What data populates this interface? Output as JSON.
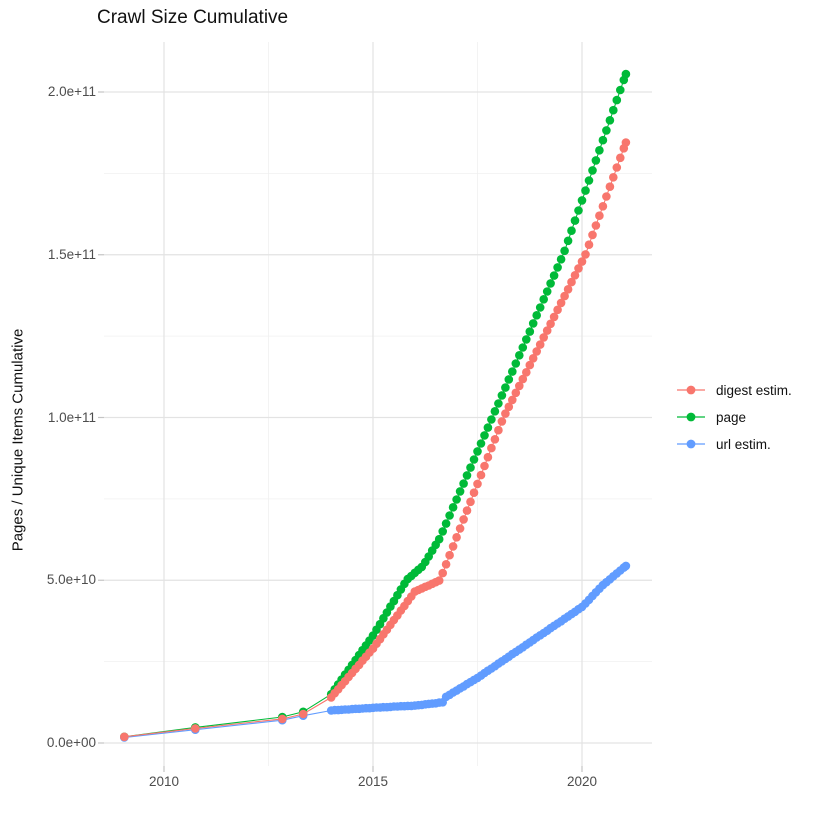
{
  "title": "Crawl Size Cumulative",
  "axes": {
    "y_title": "Pages / Unique Items Cumulative",
    "x_title": "",
    "y_ticks": {
      "values_e9": [
        0,
        50,
        100,
        150,
        200
      ],
      "labels": [
        "0.0e+00",
        "5.0e+10",
        "1.0e+11",
        "1.5e+11",
        "2.0e+11"
      ]
    },
    "y_minor_e9": [
      25,
      75,
      125,
      175
    ],
    "x_ticks": {
      "values": [
        2010,
        2015,
        2020
      ],
      "labels": [
        "2010",
        "2015",
        "2020"
      ]
    },
    "x_minor": [
      2012.5,
      2017.5
    ]
  },
  "legend": {
    "position": "right",
    "items": [
      "digest estim.",
      "page",
      "url estim."
    ]
  },
  "colors": {
    "digest": "#F8766D",
    "page": "#00BA38",
    "url": "#619CFF",
    "grid_major": "#E3E3E3",
    "grid_minor": "#F0F0F0",
    "tick": "#C4C4C4",
    "tick_text": "#4D4D4D",
    "background": "#FFFFFF"
  },
  "chart_data": {
    "type": "scatter",
    "title": "Crawl Size Cumulative",
    "xlabel": "",
    "ylabel": "Pages / Unique Items Cumulative",
    "value_unit": "1e9 (billions of pages / unique items)",
    "xlim": [
      2008.56,
      2021.72
    ],
    "ylim": [
      0,
      215000000000.0
    ],
    "grid": true,
    "legend_position": "right",
    "x_years": [
      2009.05,
      2010.75,
      2012.83,
      2013.33,
      2014.0,
      2014.083,
      2014.167,
      2014.25,
      2014.333,
      2014.417,
      2014.5,
      2014.583,
      2014.667,
      2014.75,
      2014.833,
      2014.917,
      2015.0,
      2015.083,
      2015.167,
      2015.25,
      2015.333,
      2015.417,
      2015.5,
      2015.583,
      2015.667,
      2015.75,
      2015.833,
      2015.917,
      2016.0,
      2016.083,
      2016.167,
      2016.25,
      2016.333,
      2016.417,
      2016.5,
      2016.583,
      2016.667,
      2016.75,
      2016.833,
      2016.917,
      2017.0,
      2017.083,
      2017.167,
      2017.25,
      2017.333,
      2017.417,
      2017.5,
      2017.583,
      2017.667,
      2017.75,
      2017.833,
      2017.917,
      2018.0,
      2018.083,
      2018.167,
      2018.25,
      2018.333,
      2018.417,
      2018.5,
      2018.583,
      2018.667,
      2018.75,
      2018.833,
      2018.917,
      2019.0,
      2019.083,
      2019.167,
      2019.25,
      2019.333,
      2019.417,
      2019.5,
      2019.583,
      2019.667,
      2019.75,
      2019.833,
      2019.917,
      2020.0,
      2020.083,
      2020.167,
      2020.25,
      2020.333,
      2020.417,
      2020.5,
      2020.583,
      2020.667,
      2020.75,
      2020.833,
      2020.917,
      2021.0,
      2021.05
    ],
    "series": [
      {
        "name": "digest estim.",
        "color": "#F8766D",
        "values_e9": [
          1.9,
          4.5,
          7.4,
          8.9,
          14.0,
          15.3,
          16.5,
          17.8,
          19.0,
          20.3,
          21.5,
          22.8,
          24.0,
          25.3,
          26.5,
          27.8,
          29.0,
          30.5,
          31.9,
          33.4,
          34.8,
          36.3,
          37.8,
          39.2,
          40.7,
          42.1,
          43.6,
          45.0,
          46.5,
          47.0,
          47.5,
          48.0,
          48.4,
          48.9,
          49.4,
          49.9,
          52.2,
          54.9,
          57.7,
          60.4,
          63.2,
          65.9,
          68.7,
          71.4,
          74.1,
          76.9,
          79.6,
          82.3,
          85.1,
          87.8,
          90.6,
          93.3,
          96.1,
          98.8,
          101.2,
          103.3,
          105.4,
          107.6,
          109.7,
          111.8,
          113.9,
          116.1,
          118.2,
          120.3,
          122.4,
          124.6,
          126.7,
          128.8,
          130.9,
          133.1,
          135.2,
          137.3,
          139.4,
          141.6,
          143.7,
          145.8,
          147.9,
          150.1,
          153.1,
          156.1,
          159.0,
          162.0,
          164.9,
          167.9,
          170.9,
          173.8,
          176.8,
          179.8,
          182.7,
          184.5
        ]
      },
      {
        "name": "page",
        "color": "#00BA38",
        "values_e9": [
          1.9,
          4.8,
          8.0,
          9.6,
          15.0,
          16.5,
          18.0,
          19.5,
          21.0,
          22.5,
          24.0,
          25.5,
          27.0,
          28.5,
          30.0,
          31.5,
          33.0,
          34.8,
          36.5,
          38.3,
          40.1,
          41.9,
          43.6,
          45.4,
          47.2,
          48.9,
          50.4,
          51.3,
          52.3,
          53.2,
          54.1,
          55.6,
          57.3,
          59.1,
          60.9,
          62.6,
          65.0,
          67.4,
          69.9,
          72.4,
          74.8,
          77.3,
          79.7,
          82.2,
          84.6,
          87.1,
          89.6,
          92.0,
          94.5,
          96.9,
          99.4,
          101.9,
          104.3,
          106.8,
          109.2,
          111.7,
          114.1,
          116.6,
          119.1,
          121.5,
          124.0,
          126.4,
          128.9,
          131.4,
          133.8,
          136.3,
          138.7,
          141.2,
          143.6,
          146.1,
          148.6,
          151.2,
          154.3,
          157.4,
          160.5,
          163.6,
          166.7,
          169.7,
          172.8,
          175.9,
          179.0,
          182.1,
          185.2,
          188.2,
          191.3,
          194.4,
          197.5,
          200.6,
          203.7,
          205.5
        ]
      },
      {
        "name": "url estim.",
        "color": "#619CFF",
        "values_e9": [
          1.7,
          4.1,
          7.0,
          8.4,
          10.0,
          10.1,
          10.1,
          10.2,
          10.3,
          10.3,
          10.4,
          10.5,
          10.5,
          10.6,
          10.7,
          10.7,
          10.8,
          10.9,
          10.9,
          11.0,
          11.0,
          11.1,
          11.2,
          11.2,
          11.3,
          11.3,
          11.4,
          11.4,
          11.5,
          11.6,
          11.7,
          11.9,
          12.0,
          12.1,
          12.2,
          12.4,
          12.5,
          14.2,
          14.8,
          15.5,
          16.1,
          16.8,
          17.4,
          18.1,
          18.7,
          19.4,
          20.0,
          20.7,
          21.5,
          22.2,
          22.9,
          23.6,
          24.4,
          25.1,
          25.8,
          26.5,
          27.3,
          28.0,
          28.7,
          29.4,
          30.2,
          30.9,
          31.6,
          32.4,
          33.1,
          33.8,
          34.5,
          35.3,
          36.0,
          36.7,
          37.4,
          38.2,
          38.9,
          39.6,
          40.3,
          41.1,
          41.8,
          42.9,
          44.0,
          45.2,
          46.3,
          47.4,
          48.5,
          49.4,
          50.3,
          51.2,
          52.1,
          53.0,
          53.9,
          54.4
        ]
      }
    ]
  }
}
